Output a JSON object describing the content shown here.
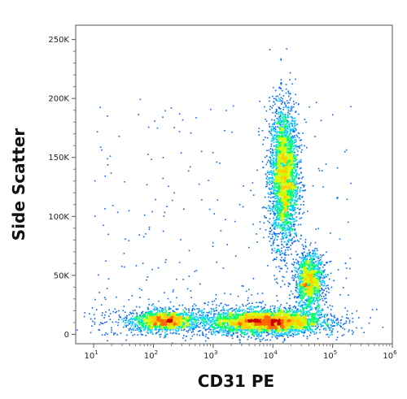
{
  "chart_data": {
    "type": "scatter",
    "subtype": "flow-cytometry-density-dot-plot",
    "xlabel": "CD31 PE",
    "ylabel": "Side Scatter",
    "x_scale": "log",
    "xlim": [
      5,
      1000000
    ],
    "ylim": [
      -8000,
      262144
    ],
    "x_ticks": [
      {
        "value": 10,
        "base": "10",
        "exp": "1"
      },
      {
        "value": 100,
        "base": "10",
        "exp": "2"
      },
      {
        "value": 1000,
        "base": "10",
        "exp": "3"
      },
      {
        "value": 10000,
        "base": "10",
        "exp": "4"
      },
      {
        "value": 100000,
        "base": "10",
        "exp": "5"
      },
      {
        "value": 1000000,
        "base": "10",
        "exp": "6"
      }
    ],
    "y_ticks": [
      {
        "value": 0,
        "label": "0"
      },
      {
        "value": 50000,
        "label": "50K"
      },
      {
        "value": 100000,
        "label": "100K"
      },
      {
        "value": 150000,
        "label": "150K"
      },
      {
        "value": 200000,
        "label": "200K"
      },
      {
        "value": 250000,
        "label": "250K"
      }
    ],
    "populations": [
      {
        "x_center": 15000,
        "x_spread_decades": 0.12,
        "y_center": 135000,
        "y_spread": 30000,
        "density": "high"
      },
      {
        "x_center": 40000,
        "x_spread_decades": 0.12,
        "y_center": 45000,
        "y_spread": 12000,
        "density": "medium"
      },
      {
        "x_center": 150,
        "x_spread_decades": 0.25,
        "y_center": 12000,
        "y_spread": 4000,
        "density": "medium"
      },
      {
        "x_center": 8000,
        "x_spread_decades": 0.45,
        "y_center": 11000,
        "y_spread": 5000,
        "density": "very high"
      },
      {
        "x_center": 1000,
        "x_spread_decades": 1.1,
        "y_center": 12000,
        "y_spread": 7000,
        "density": "low"
      }
    ],
    "density_colors": [
      "#0000cc",
      "#0066ff",
      "#00ccff",
      "#00ff66",
      "#ccff00",
      "#ffcc00",
      "#ff6600",
      "#cc0000"
    ],
    "grid": false,
    "legend": "none"
  }
}
